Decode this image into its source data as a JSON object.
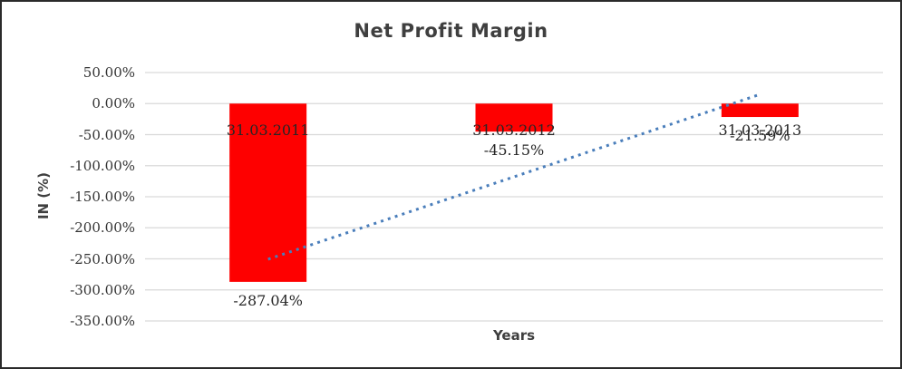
{
  "chart_data": {
    "type": "bar",
    "title": "Net Profit Margin",
    "xlabel": "Years",
    "ylabel": "IN (%)",
    "categories": [
      "31.03.2011",
      "31.03.2012",
      "31.03.2013"
    ],
    "values": [
      -287.04,
      -45.15,
      -21.59
    ],
    "data_labels": [
      "-287.04%",
      "-45.15%",
      "-21.59%"
    ],
    "ylim": [
      -350,
      50
    ],
    "ytick_step": 50,
    "ytick_labels": [
      "50.00%",
      "0.00%",
      "-50.00%",
      "-100.00%",
      "-150.00%",
      "-200.00%",
      "-250.00%",
      "-300.00%",
      "-350.00%"
    ],
    "grid": true,
    "legend": "none",
    "trendline": {
      "type": "linear",
      "style": "dotted"
    },
    "colors": {
      "bar": "#fe0000",
      "trendline": "#4a7ebb",
      "gridline": "#d9d9d9",
      "title_text": "#3f3f3f",
      "label_text": "#262626"
    }
  }
}
